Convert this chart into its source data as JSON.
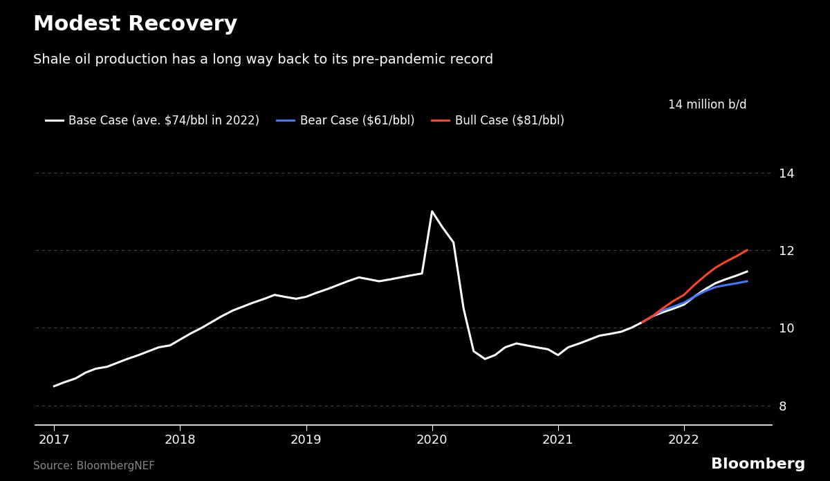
{
  "title": "Modest Recovery",
  "subtitle": "Shale oil production has a long way back to its pre-pandemic record",
  "unit_label": "14 million b/d",
  "source": "Source: BloombergNEF",
  "background_color": "#000000",
  "text_color": "#ffffff",
  "grid_color": "#444444",
  "ylabel_color": "#aaaaaa",
  "yticks": [
    8,
    10,
    12,
    14
  ],
  "ylim": [
    7.5,
    14.5
  ],
  "legend": [
    {
      "label": "Base Case (ave. $74/bbl in 2022)",
      "color": "#ffffff"
    },
    {
      "label": "Bear Case ($61/bbl)",
      "color": "#4477ff"
    },
    {
      "label": "Bull Case ($81/bbl)",
      "color": "#ff4422"
    }
  ],
  "base_case": {
    "x": [
      2017.0,
      2017.08,
      2017.17,
      2017.25,
      2017.33,
      2017.42,
      2017.5,
      2017.58,
      2017.67,
      2017.75,
      2017.83,
      2017.92,
      2018.0,
      2018.08,
      2018.17,
      2018.25,
      2018.33,
      2018.42,
      2018.5,
      2018.58,
      2018.67,
      2018.75,
      2018.83,
      2018.92,
      2019.0,
      2019.08,
      2019.17,
      2019.25,
      2019.33,
      2019.42,
      2019.5,
      2019.58,
      2019.67,
      2019.75,
      2019.83,
      2019.92,
      2020.0,
      2020.08,
      2020.17,
      2020.25,
      2020.33,
      2020.42,
      2020.5,
      2020.58,
      2020.67,
      2020.75,
      2020.83,
      2020.92,
      2021.0,
      2021.08,
      2021.17,
      2021.25,
      2021.33,
      2021.42,
      2021.5,
      2021.58,
      2021.67,
      2021.75,
      2021.83,
      2021.92,
      2022.0,
      2022.08,
      2022.17,
      2022.25,
      2022.33,
      2022.42,
      2022.5
    ],
    "y": [
      8.5,
      8.6,
      8.7,
      8.85,
      8.95,
      9.0,
      9.1,
      9.2,
      9.3,
      9.4,
      9.5,
      9.55,
      9.7,
      9.85,
      10.0,
      10.15,
      10.3,
      10.45,
      10.55,
      10.65,
      10.75,
      10.85,
      10.8,
      10.75,
      10.8,
      10.9,
      11.0,
      11.1,
      11.2,
      11.3,
      11.25,
      11.2,
      11.25,
      11.3,
      11.35,
      11.4,
      13.0,
      12.6,
      12.2,
      10.5,
      9.4,
      9.2,
      9.3,
      9.5,
      9.6,
      9.55,
      9.5,
      9.45,
      9.3,
      9.5,
      9.6,
      9.7,
      9.8,
      9.85,
      9.9,
      10.0,
      10.15,
      10.3,
      10.4,
      10.5,
      10.6,
      10.8,
      11.0,
      11.15,
      11.25,
      11.35,
      11.45
    ]
  },
  "bear_case": {
    "x": [
      2021.67,
      2021.75,
      2021.83,
      2021.92,
      2022.0,
      2022.08,
      2022.17,
      2022.25,
      2022.33,
      2022.42,
      2022.5
    ],
    "y": [
      10.15,
      10.3,
      10.45,
      10.55,
      10.65,
      10.8,
      10.95,
      11.05,
      11.1,
      11.15,
      11.2
    ]
  },
  "bull_case": {
    "x": [
      2021.67,
      2021.75,
      2021.83,
      2021.92,
      2022.0,
      2022.08,
      2022.17,
      2022.25,
      2022.33,
      2022.42,
      2022.5
    ],
    "y": [
      10.15,
      10.3,
      10.5,
      10.7,
      10.85,
      11.1,
      11.35,
      11.55,
      11.7,
      11.85,
      12.0
    ]
  }
}
